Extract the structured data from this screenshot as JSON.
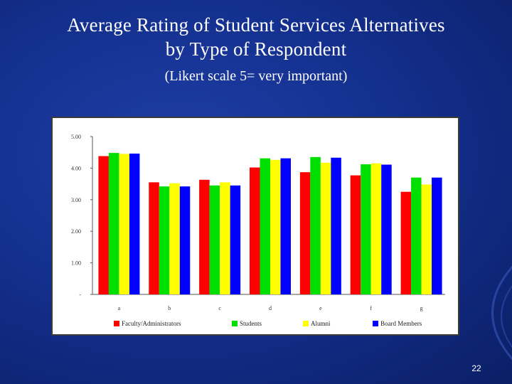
{
  "slide": {
    "title_line1": "Average Rating of Student Services Alternatives",
    "title_line2": "by Type of Respondent",
    "subtitle": "(Likert scale 5= very important)",
    "page_number": "22"
  },
  "chart_data": {
    "type": "bar",
    "title": "",
    "xlabel": "",
    "ylabel": "",
    "ylim": [
      0,
      5
    ],
    "yticks": [
      "-",
      "1.00",
      "2.00",
      "3.00",
      "4.00",
      "5.00"
    ],
    "grid": false,
    "legend_position": "bottom",
    "categories": [
      "a",
      "b",
      "c",
      "d",
      "e",
      "f",
      "g"
    ],
    "series": [
      {
        "name": "Faculty/Administrators",
        "color": "#ff0000",
        "values": [
          4.38,
          3.55,
          3.63,
          4.02,
          3.87,
          3.77,
          3.25
        ]
      },
      {
        "name": "Students",
        "color": "#00e000",
        "values": [
          4.48,
          3.42,
          3.45,
          4.31,
          4.35,
          4.12,
          3.7
        ]
      },
      {
        "name": "Alumni",
        "color": "#ffff00",
        "values": [
          4.45,
          3.52,
          3.55,
          4.26,
          4.17,
          4.15,
          3.48
        ]
      },
      {
        "name": "Board Members",
        "color": "#0000ff",
        "values": [
          4.46,
          3.42,
          3.45,
          4.31,
          4.33,
          4.11,
          3.7
        ]
      }
    ]
  }
}
